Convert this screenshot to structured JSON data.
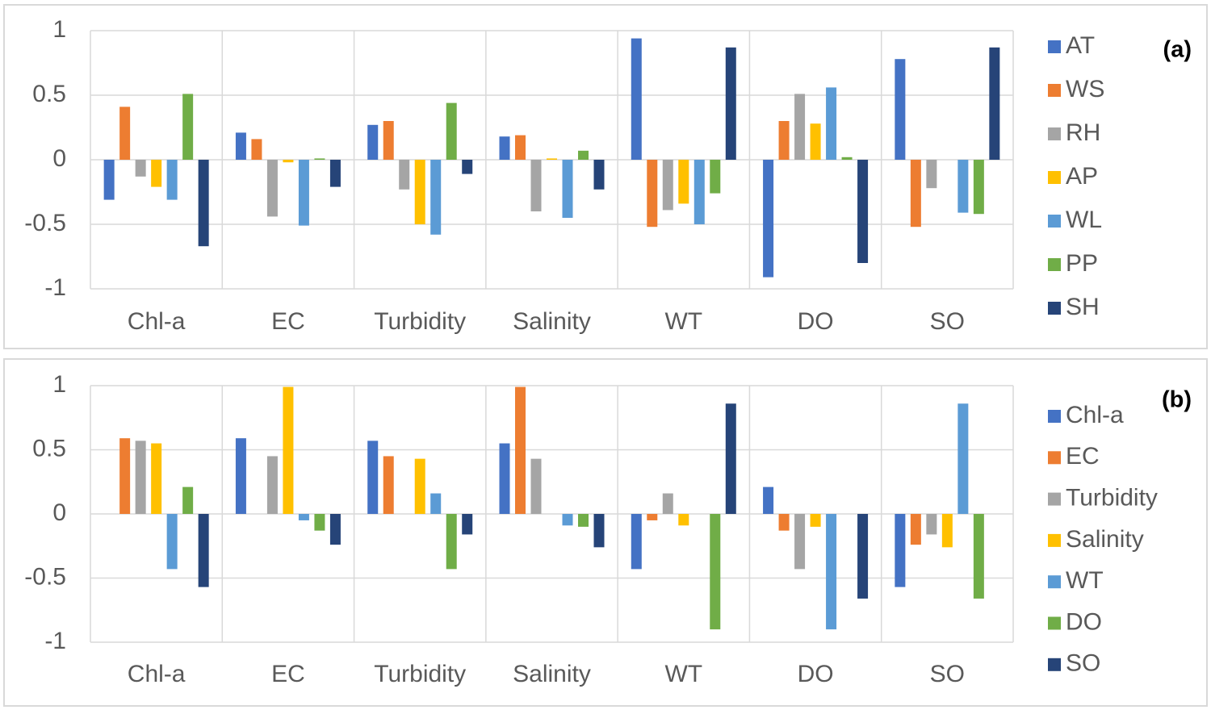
{
  "chart_data": [
    {
      "type": "bar",
      "panel_label": "(a)",
      "categories": [
        "Chl-a",
        "EC",
        "Turbidity",
        "Salinity",
        "WT",
        "DO",
        "SO"
      ],
      "ylim": [
        -1,
        1
      ],
      "yticks": [
        -1,
        -0.5,
        0,
        0.5,
        1
      ],
      "grid": true,
      "legend": "right",
      "series": [
        {
          "name": "AT",
          "color": "#4472c4",
          "values": [
            -0.31,
            0.21,
            0.27,
            0.18,
            0.94,
            -0.91,
            0.78
          ]
        },
        {
          "name": "WS",
          "color": "#ed7d31",
          "values": [
            0.41,
            0.16,
            0.3,
            0.19,
            -0.52,
            0.3,
            -0.52
          ]
        },
        {
          "name": "RH",
          "color": "#a5a5a5",
          "values": [
            -0.13,
            -0.44,
            -0.23,
            -0.4,
            -0.39,
            0.51,
            -0.22
          ]
        },
        {
          "name": "AP",
          "color": "#ffc000",
          "values": [
            -0.21,
            -0.02,
            -0.5,
            0.01,
            -0.34,
            0.28,
            0
          ]
        },
        {
          "name": "WL",
          "color": "#5b9bd5",
          "values": [
            -0.31,
            -0.51,
            -0.58,
            -0.45,
            -0.5,
            0.56,
            -0.41
          ]
        },
        {
          "name": "PP",
          "color": "#70ad47",
          "values": [
            0.51,
            0.01,
            0.44,
            0.07,
            -0.26,
            0.02,
            -0.42
          ]
        },
        {
          "name": "SH",
          "color": "#264478",
          "values": [
            -0.67,
            -0.21,
            -0.11,
            -0.23,
            0.87,
            -0.8,
            0.87
          ]
        }
      ]
    },
    {
      "type": "bar",
      "panel_label": "(b)",
      "categories": [
        "Chl-a",
        "EC",
        "Turbidity",
        "Salinity",
        "WT",
        "DO",
        "SO"
      ],
      "ylim": [
        -1,
        1
      ],
      "yticks": [
        -1,
        -0.5,
        0,
        0.5,
        1
      ],
      "grid": true,
      "legend": "right",
      "series": [
        {
          "name": "Chl-a",
          "color": "#4472c4",
          "values": [
            null,
            0.59,
            0.57,
            0.55,
            -0.43,
            0.21,
            -0.57
          ]
        },
        {
          "name": "EC",
          "color": "#ed7d31",
          "values": [
            0.59,
            null,
            0.45,
            0.99,
            -0.05,
            -0.13,
            -0.24
          ]
        },
        {
          "name": "Turbidity",
          "color": "#a5a5a5",
          "values": [
            0.57,
            0.45,
            null,
            0.43,
            0.16,
            -0.43,
            -0.16
          ]
        },
        {
          "name": "Salinity",
          "color": "#ffc000",
          "values": [
            0.55,
            0.99,
            0.43,
            null,
            -0.09,
            -0.1,
            -0.26
          ]
        },
        {
          "name": "WT",
          "color": "#5b9bd5",
          "values": [
            -0.43,
            -0.05,
            0.16,
            -0.09,
            null,
            -0.9,
            0.86
          ]
        },
        {
          "name": "DO",
          "color": "#70ad47",
          "values": [
            0.21,
            -0.13,
            -0.43,
            -0.1,
            -0.9,
            null,
            -0.66
          ]
        },
        {
          "name": "SO",
          "color": "#264478",
          "values": [
            -0.57,
            -0.24,
            -0.16,
            -0.26,
            0.86,
            -0.66,
            null
          ]
        }
      ]
    }
  ]
}
